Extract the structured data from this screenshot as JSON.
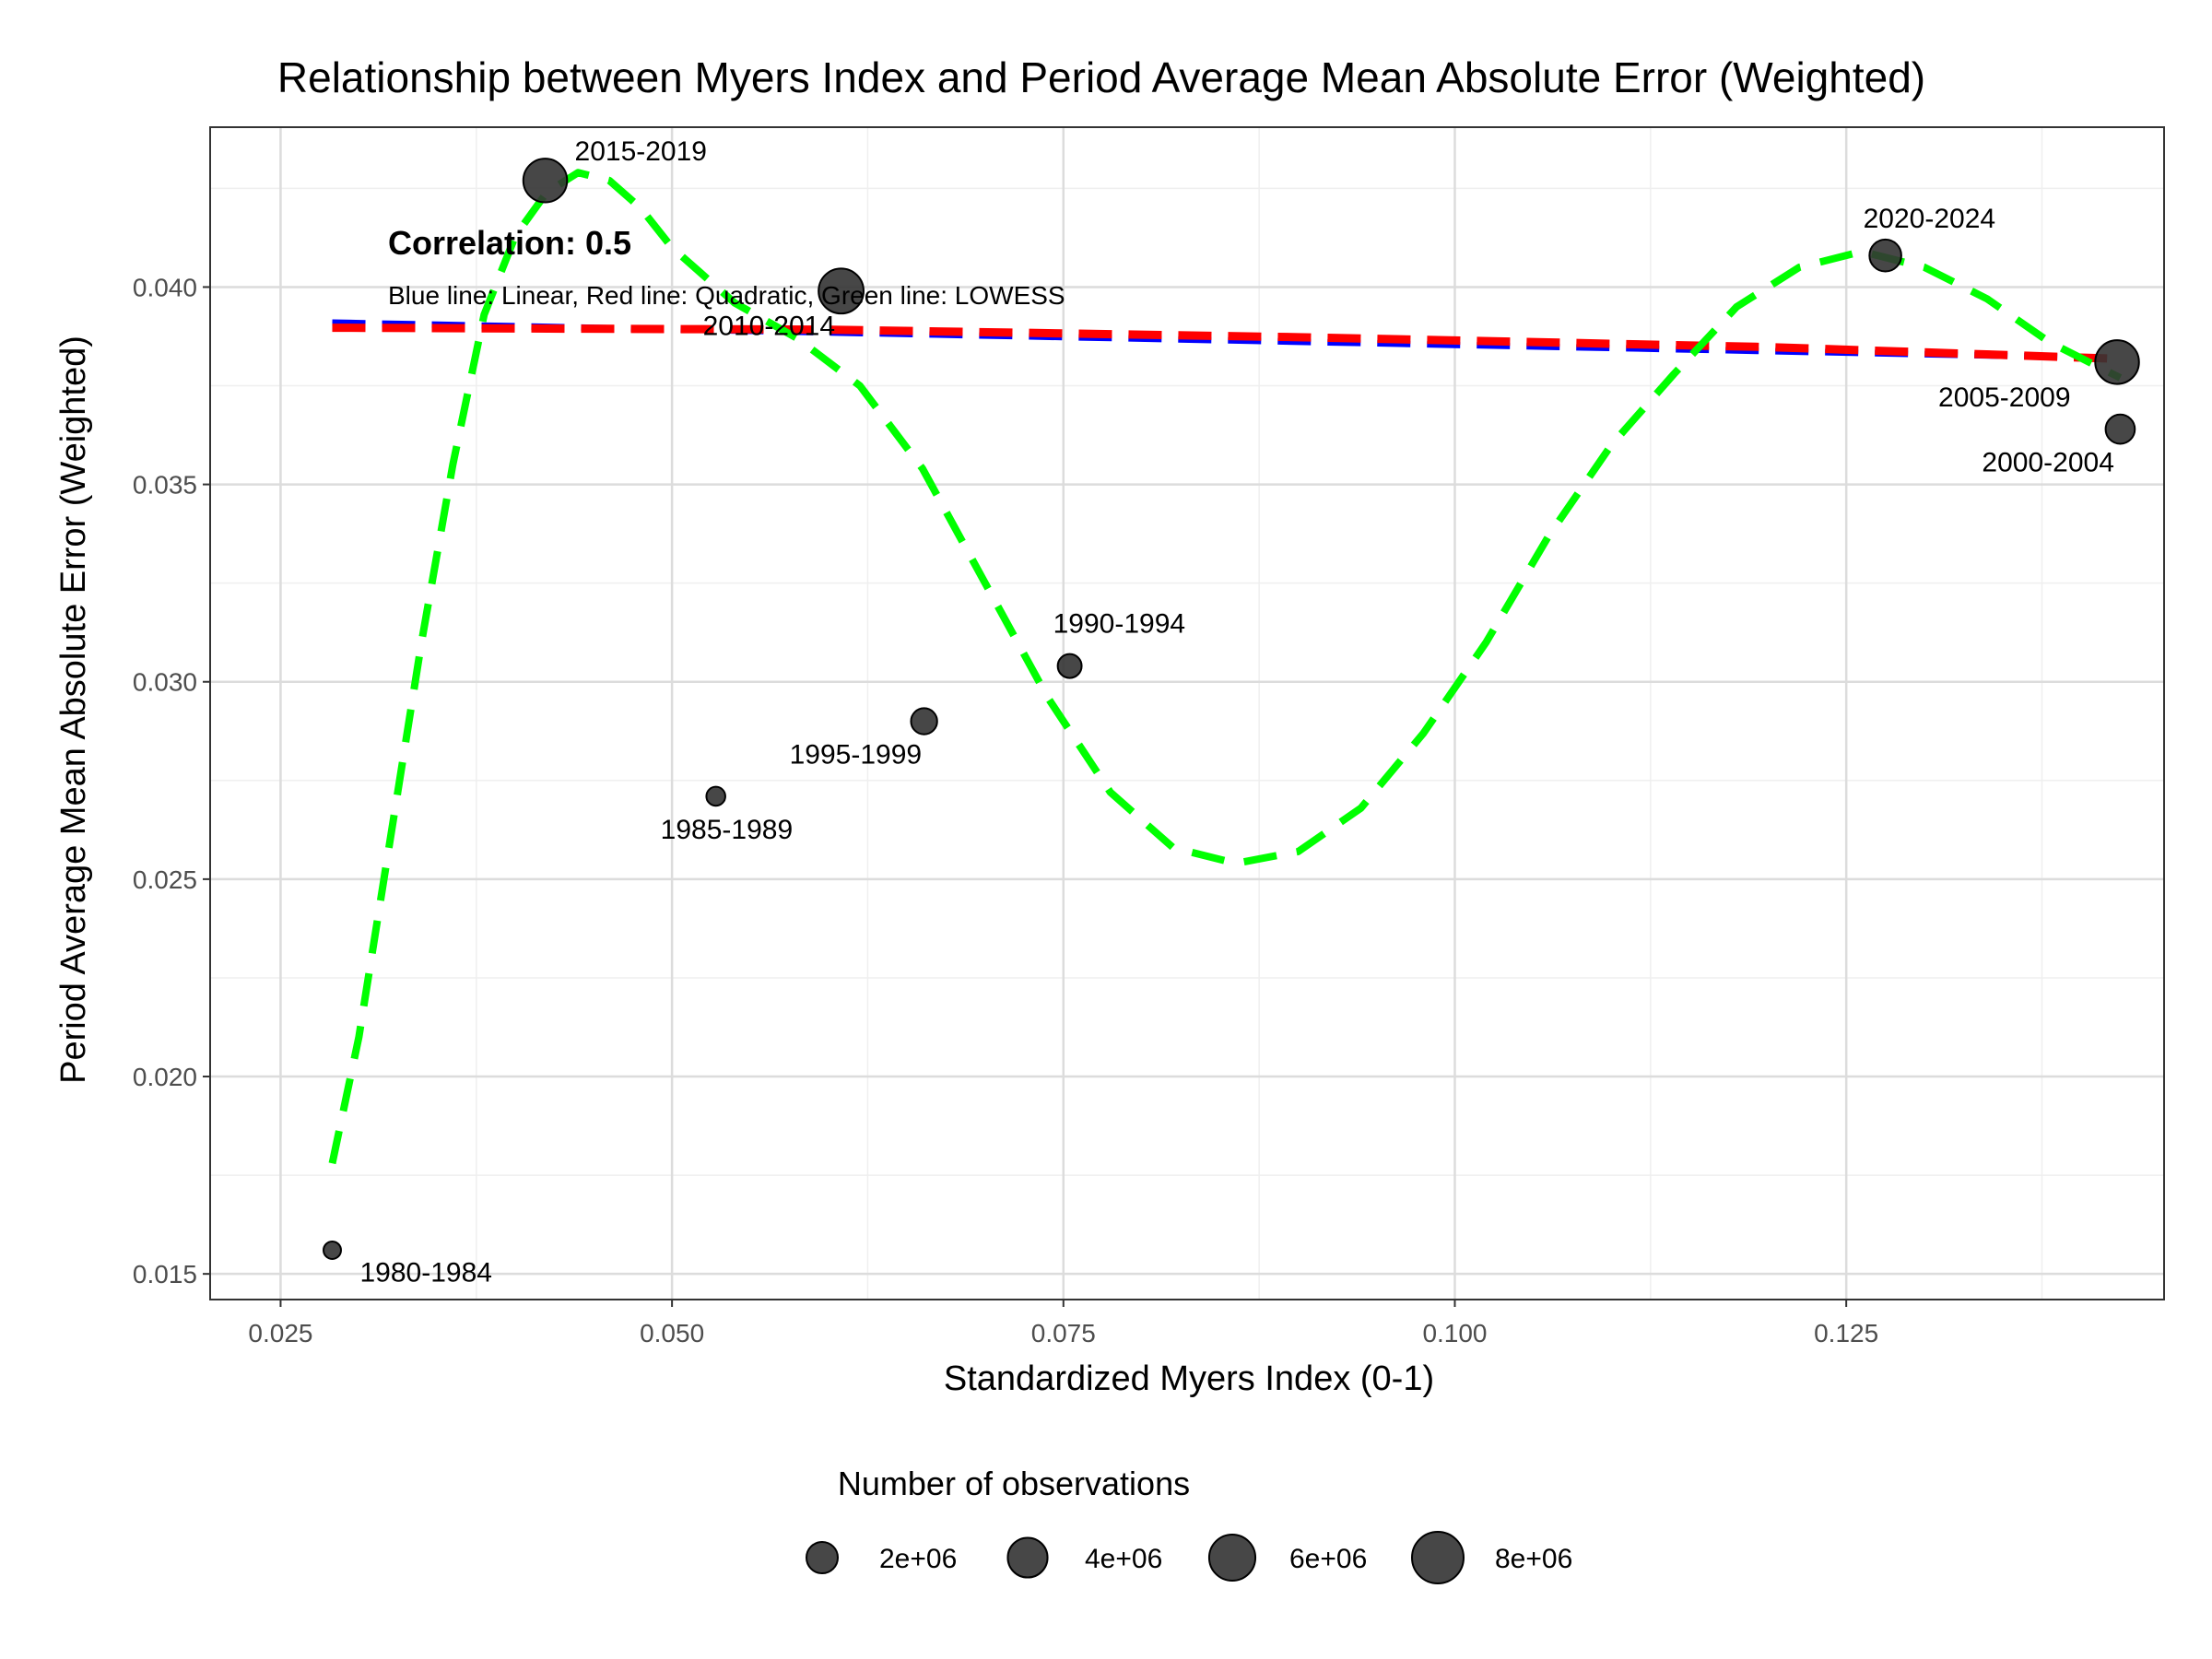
{
  "chart_data": {
    "type": "scatter",
    "title": "Relationship between Myers Index and Period Average Mean Absolute Error (Weighted)",
    "xlabel": "Standardized Myers Index (0-1)",
    "ylabel": "Period Average Mean Absolute Error (Weighted)",
    "xlim": [
      0.0205,
      0.1453
    ],
    "ylim": [
      0.01435,
      0.04405
    ],
    "x_ticks": [
      0.025,
      0.05,
      0.075,
      0.1,
      0.125
    ],
    "x_tick_labels": [
      "0.025",
      "0.050",
      "0.075",
      "0.100",
      "0.125"
    ],
    "y_ticks": [
      0.015,
      0.02,
      0.025,
      0.03,
      0.035,
      0.04
    ],
    "y_tick_labels": [
      "0.015",
      "0.020",
      "0.025",
      "0.030",
      "0.035",
      "0.040"
    ],
    "grid": true,
    "points": [
      {
        "label": "1980-1984",
        "x": 0.0283,
        "y": 0.0156,
        "n": 200000
      },
      {
        "label": "1985-1989",
        "x": 0.0528,
        "y": 0.0271,
        "n": 300000
      },
      {
        "label": "1990-1994",
        "x": 0.0754,
        "y": 0.0304,
        "n": 800000
      },
      {
        "label": "1995-1999",
        "x": 0.0661,
        "y": 0.029,
        "n": 1100000
      },
      {
        "label": "2000-2004",
        "x": 0.1425,
        "y": 0.0364,
        "n": 1600000
      },
      {
        "label": "2005-2009",
        "x": 0.1423,
        "y": 0.0381,
        "n": 5200000
      },
      {
        "label": "2010-2014",
        "x": 0.0608,
        "y": 0.0399,
        "n": 5600000
      },
      {
        "label": "2015-2019",
        "x": 0.0419,
        "y": 0.0427,
        "n": 5200000
      },
      {
        "label": "2020-2024",
        "x": 0.1275,
        "y": 0.0408,
        "n": 2100000
      }
    ],
    "fits": [
      {
        "name": "Linear",
        "color": "#0000ff",
        "x": [
          0.0283,
          0.1425
        ],
        "y": [
          0.0391,
          0.0382
        ]
      },
      {
        "name": "Quadratic",
        "color": "#ff0000",
        "x": [
          0.0283,
          0.06,
          0.09,
          0.12,
          0.1425
        ],
        "y": [
          0.03897,
          0.03892,
          0.03873,
          0.03848,
          0.03818
        ]
      },
      {
        "name": "LOWESS",
        "color": "#00ff00",
        "x": [
          0.0283,
          0.03,
          0.032,
          0.034,
          0.036,
          0.038,
          0.04,
          0.042,
          0.044,
          0.046,
          0.048,
          0.05,
          0.054,
          0.058,
          0.062,
          0.066,
          0.07,
          0.074,
          0.078,
          0.082,
          0.086,
          0.09,
          0.094,
          0.098,
          0.102,
          0.106,
          0.11,
          0.114,
          0.118,
          0.122,
          0.126,
          0.13,
          0.134,
          0.138,
          0.1425
        ],
        "y": [
          0.0178,
          0.021,
          0.026,
          0.031,
          0.0355,
          0.0393,
          0.0413,
          0.0424,
          0.0429,
          0.0427,
          0.042,
          0.041,
          0.0396,
          0.0387,
          0.0375,
          0.0354,
          0.0325,
          0.0296,
          0.0272,
          0.0258,
          0.0254,
          0.0257,
          0.0268,
          0.0287,
          0.031,
          0.0337,
          0.036,
          0.0378,
          0.0395,
          0.0405,
          0.0409,
          0.0405,
          0.0397,
          0.0386,
          0.0377
        ]
      }
    ],
    "annotations": {
      "correlation": "Correlation: 0.5",
      "note": "Blue line: Linear, Red line: Quadratic, Green line: LOWESS"
    },
    "legend": {
      "title": "Number of observations",
      "placement": "bottom",
      "entries": [
        {
          "label": "2e+06",
          "n": 2000000
        },
        {
          "label": "4e+06",
          "n": 4000000
        },
        {
          "label": "6e+06",
          "n": 6000000
        },
        {
          "label": "8e+06",
          "n": 8000000
        }
      ]
    },
    "colors": {
      "point_fill": "#333333",
      "grid": "#dcdcdc",
      "panel_border": "#333333"
    }
  }
}
